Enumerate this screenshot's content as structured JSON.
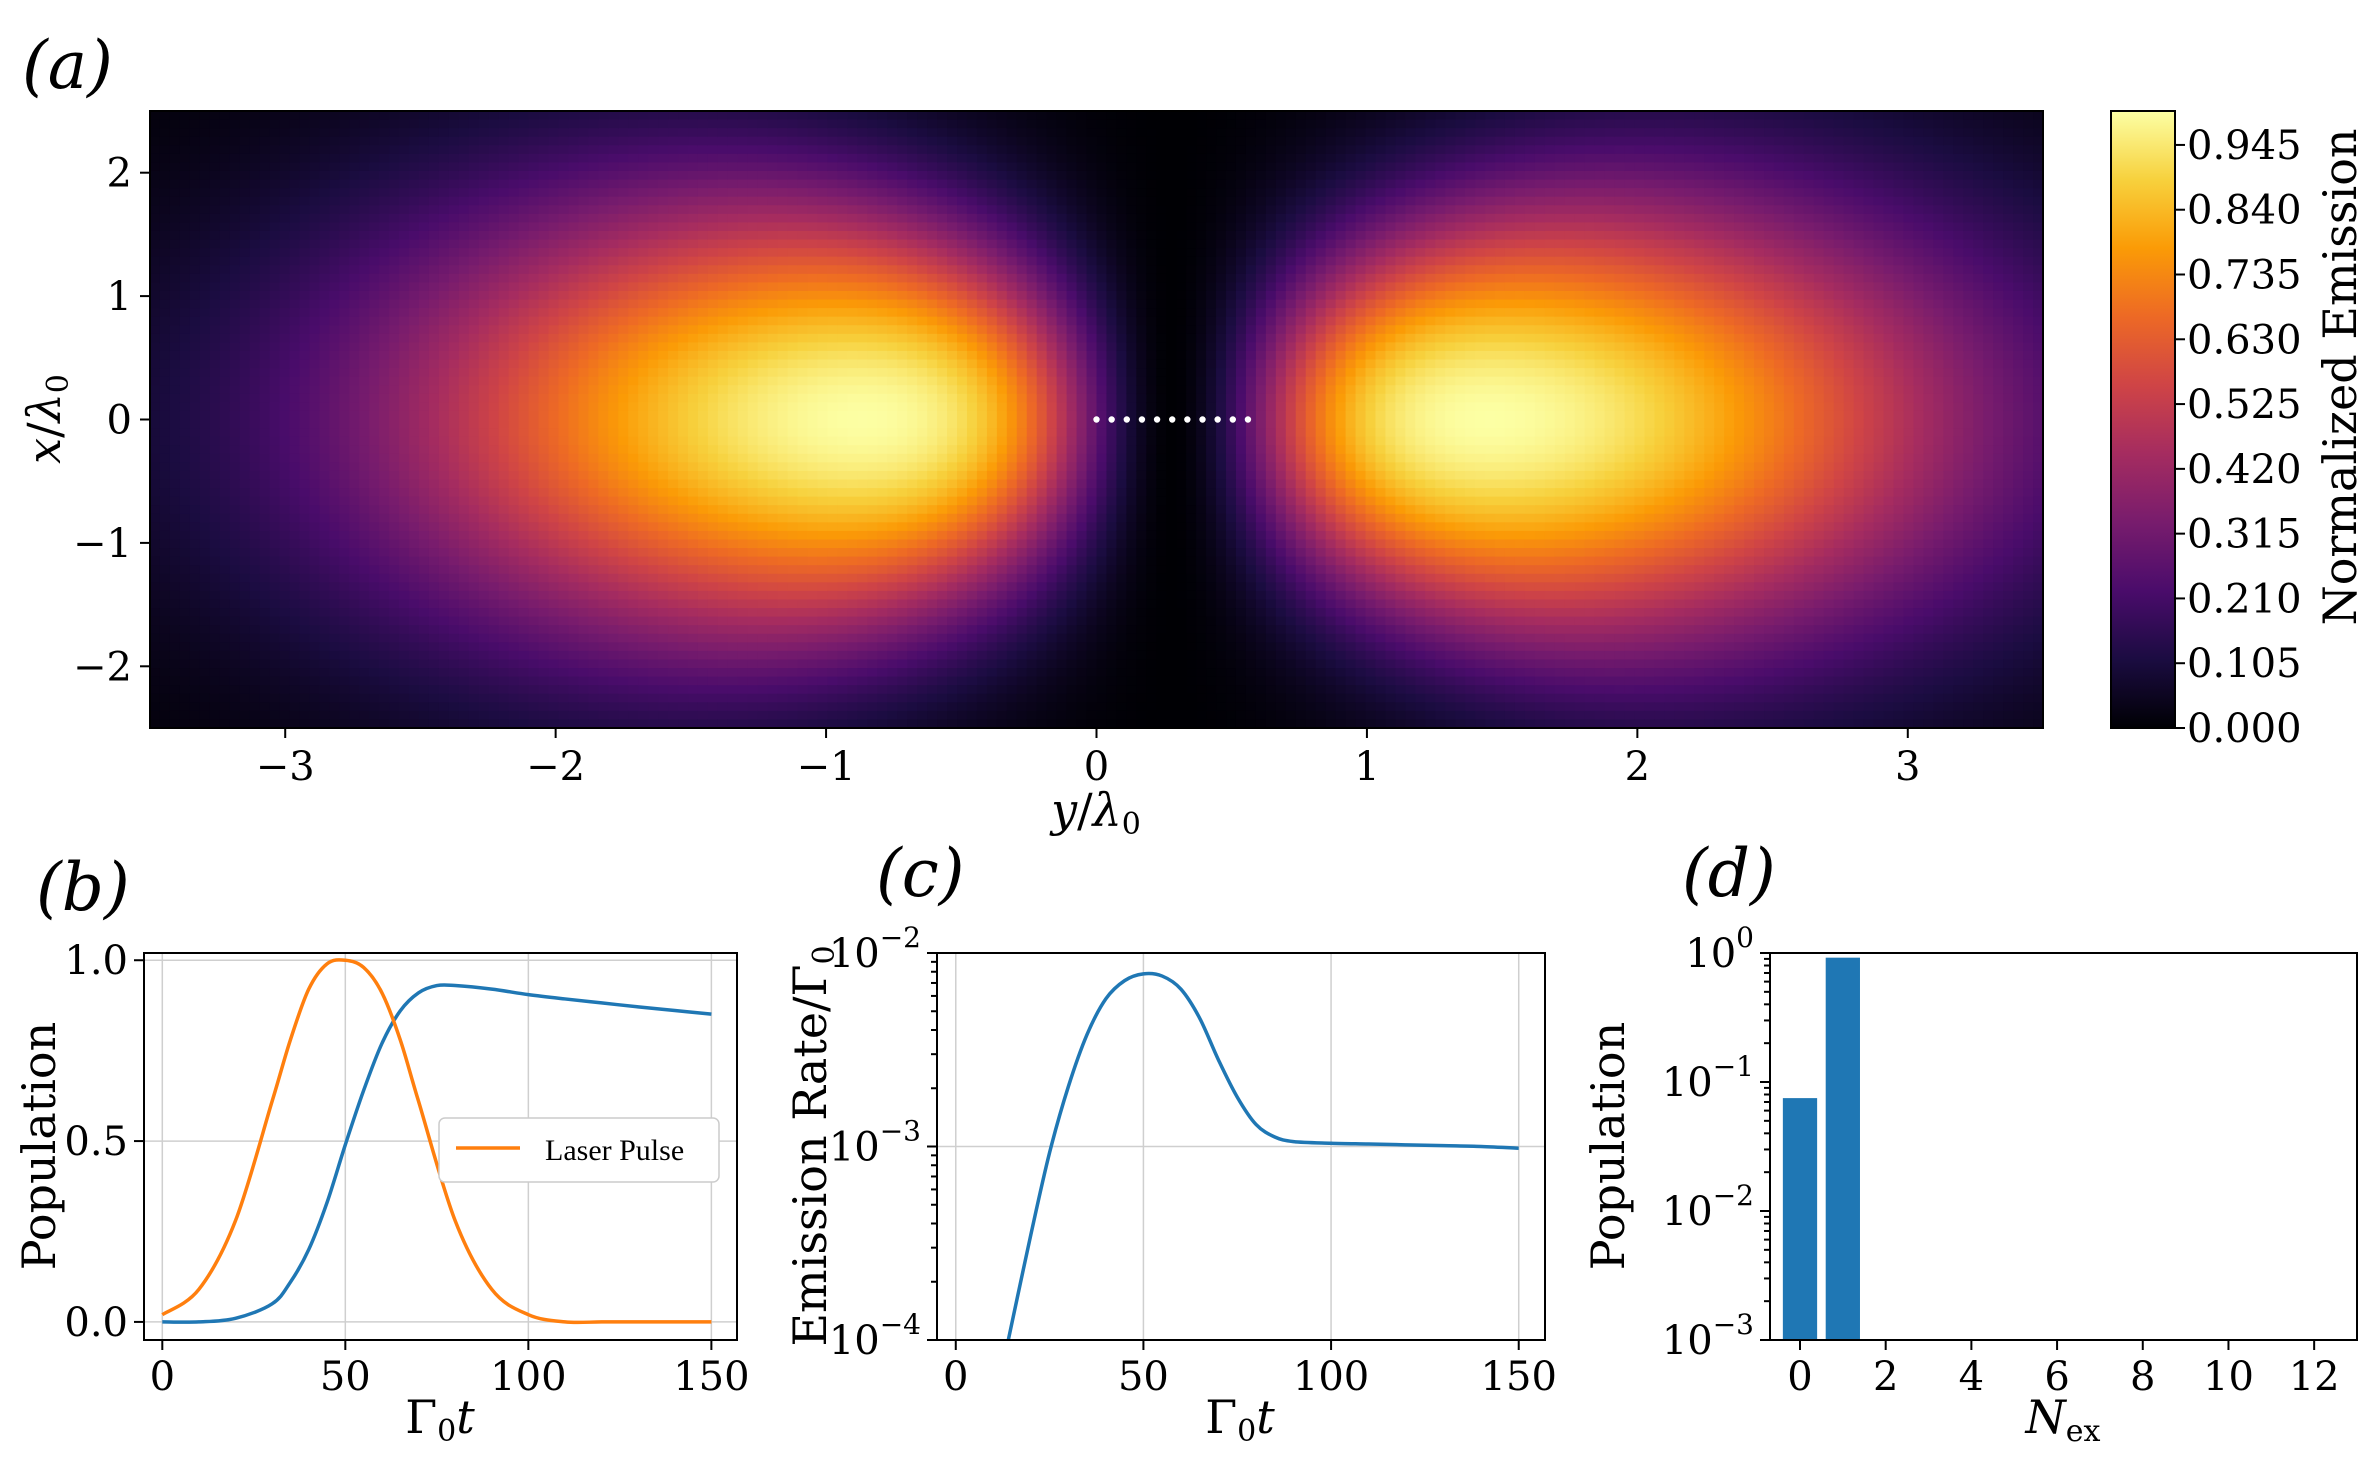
{
  "chart_data": [
    {
      "id": "a",
      "type": "heatmap",
      "panel_label": "(a)",
      "xlabel": "y/λ0",
      "ylabel": "x/λ0",
      "xlim": [
        -3.5,
        3.5
      ],
      "ylim": [
        -2.5,
        2.5
      ],
      "xticks": [
        "−3",
        "−2",
        "−1",
        "0",
        "1",
        "2",
        "3"
      ],
      "xtick_values": [
        -3,
        -2,
        -1,
        0,
        1,
        2,
        3
      ],
      "yticks": [
        "2",
        "1",
        "0",
        "−1",
        "−2"
      ],
      "ytick_values": [
        2,
        1,
        0,
        -1,
        -2
      ],
      "colorbar_label": "Normalized Emission",
      "colorbar_ticks": [
        "0.945",
        "0.840",
        "0.735",
        "0.630",
        "0.525",
        "0.420",
        "0.315",
        "0.210",
        "0.105",
        "0.000"
      ],
      "colorbar_tick_values": [
        0.945,
        0.84,
        0.735,
        0.63,
        0.525,
        0.42,
        0.315,
        0.21,
        0.105,
        0.0
      ],
      "colorbar_range": [
        0,
        1
      ],
      "colormap": [
        "#000004",
        "#1b0c41",
        "#4a0c6b",
        "#781c6d",
        "#a52c60",
        "#cf4446",
        "#ed6925",
        "#fb9b06",
        "#f7d13d",
        "#fcffa4"
      ],
      "emission_peaks": [
        {
          "y": -1.05,
          "x": 0
        },
        {
          "y": 1.65,
          "x": 0
        }
      ],
      "emission_minimum_y": 0.28,
      "atoms": {
        "y_start": 0,
        "y_end": 0.56,
        "count": 11,
        "x": 0
      }
    },
    {
      "id": "b",
      "type": "line",
      "panel_label": "(b)",
      "xlabel": "Γ0t",
      "ylabel": "Population",
      "xlim": [
        -5,
        157
      ],
      "ylim": [
        -0.05,
        1.02
      ],
      "xticks": [
        "0",
        "50",
        "100",
        "150"
      ],
      "xtick_values": [
        0,
        50,
        100,
        150
      ],
      "yticks": [
        "1.0",
        "0.5",
        "0.0"
      ],
      "ytick_values": [
        1.0,
        0.5,
        0.0
      ],
      "legend": {
        "label": "Laser Pulse",
        "placement": "center-right"
      },
      "series": [
        {
          "name": "Population",
          "color": "#1f77b4",
          "x": [
            0,
            10,
            20,
            30,
            35,
            40,
            45,
            50,
            55,
            60,
            65,
            70,
            75,
            80,
            90,
            100,
            110,
            120,
            130,
            140,
            150
          ],
          "y": [
            0.0,
            0.0,
            0.01,
            0.05,
            0.11,
            0.2,
            0.33,
            0.49,
            0.64,
            0.77,
            0.86,
            0.91,
            0.93,
            0.93,
            0.92,
            0.905,
            0.893,
            0.882,
            0.871,
            0.861,
            0.851
          ]
        },
        {
          "name": "Laser Pulse",
          "color": "#ff7f0e",
          "x": [
            0,
            10,
            20,
            30,
            35,
            40,
            45,
            50,
            55,
            60,
            65,
            70,
            80,
            90,
            100,
            110,
            120,
            130,
            140,
            150
          ],
          "y": [
            0.02,
            0.09,
            0.28,
            0.61,
            0.78,
            0.92,
            0.99,
            1.0,
            0.98,
            0.91,
            0.78,
            0.61,
            0.28,
            0.09,
            0.02,
            0.0,
            0.0,
            0.0,
            0.0,
            0.0
          ]
        }
      ]
    },
    {
      "id": "c",
      "type": "line",
      "panel_label": "(c)",
      "xlabel": "Γ0t",
      "ylabel": "Emission Rate/Γ0",
      "yscale": "log",
      "xlim": [
        -5,
        157
      ],
      "ylim": [
        0.0001,
        0.01
      ],
      "xticks": [
        "0",
        "50",
        "100",
        "150"
      ],
      "xtick_values": [
        0,
        50,
        100,
        150
      ],
      "yticks": [
        "10−2",
        "10−3",
        "10−4"
      ],
      "ytick_values": [
        0.01,
        0.001,
        0.0001
      ],
      "series": [
        {
          "name": "Emission Rate",
          "color": "#1f77b4",
          "x": [
            14,
            20,
            25,
            30,
            35,
            40,
            45,
            50,
            55,
            60,
            65,
            70,
            75,
            80,
            85,
            90,
            100,
            110,
            120,
            130,
            140,
            150
          ],
          "y": [
            0.0001,
            0.00035,
            0.00093,
            0.00204,
            0.0038,
            0.0058,
            0.0072,
            0.0078,
            0.0076,
            0.0065,
            0.0046,
            0.0028,
            0.0018,
            0.0013,
            0.00112,
            0.00106,
            0.00104,
            0.00103,
            0.00102,
            0.00101,
            0.001,
            0.00098
          ]
        }
      ]
    },
    {
      "id": "d",
      "type": "bar",
      "panel_label": "(d)",
      "xlabel": "Nex",
      "ylabel": "Population",
      "yscale": "log",
      "xlim": [
        -0.7,
        13.0
      ],
      "ylim": [
        0.001,
        1.0
      ],
      "xticks": [
        "0",
        "2",
        "4",
        "6",
        "8",
        "10",
        "12"
      ],
      "xtick_values": [
        0,
        2,
        4,
        6,
        8,
        10,
        12
      ],
      "yticks": [
        "100",
        "10−1",
        "10−2",
        "10−3"
      ],
      "ytick_values": [
        1.0,
        0.1,
        0.01,
        0.001
      ],
      "bar_color": "#1f77b4",
      "categories": [
        0,
        1
      ],
      "values": [
        0.075,
        0.92
      ]
    }
  ]
}
